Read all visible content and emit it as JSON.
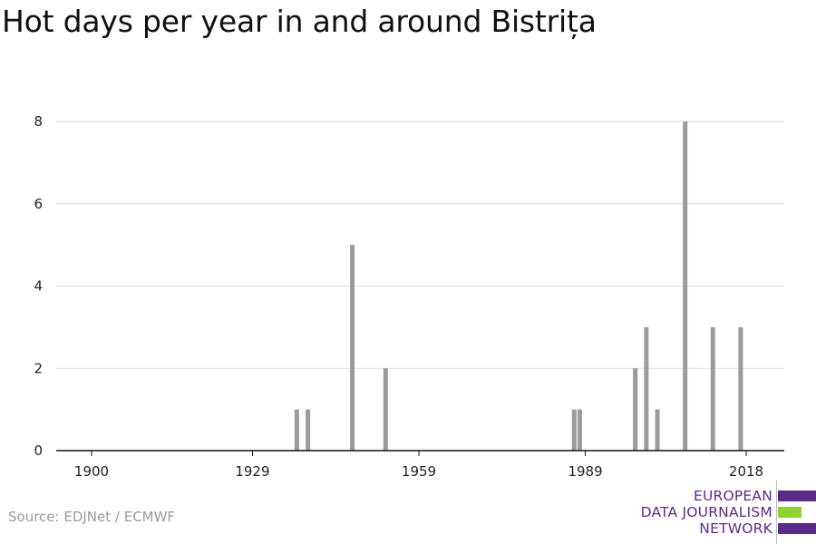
{
  "title": "Hot days per year in and around Bistrița",
  "source": "Source: EDJNet / ECMWF",
  "logo": {
    "lines": [
      "EUROPEAN",
      "DATA JOURNALISM",
      "NETWORK"
    ],
    "colors": {
      "purple": "#5b2a86",
      "green": "#8fd12f"
    }
  },
  "colors": {
    "bar": "#9b9b9b",
    "grid": "#dddddd",
    "axis": "#111111"
  },
  "chart_data": {
    "type": "bar",
    "title": "Hot days per year in and around Bistrița",
    "xlabel": "",
    "ylabel": "",
    "xlim": [
      1900,
      2019
    ],
    "ylim": [
      0,
      8
    ],
    "x_ticks": [
      1900,
      1929,
      1959,
      1989,
      2018
    ],
    "y_ticks": [
      0,
      2,
      4,
      6,
      8
    ],
    "grid": true,
    "x": [
      1937,
      1939,
      1947,
      1953,
      1987,
      1988,
      1998,
      2000,
      2002,
      2007,
      2012,
      2017
    ],
    "values": [
      1,
      1,
      5,
      2,
      1,
      1,
      2,
      3,
      1,
      8,
      3,
      3
    ]
  }
}
